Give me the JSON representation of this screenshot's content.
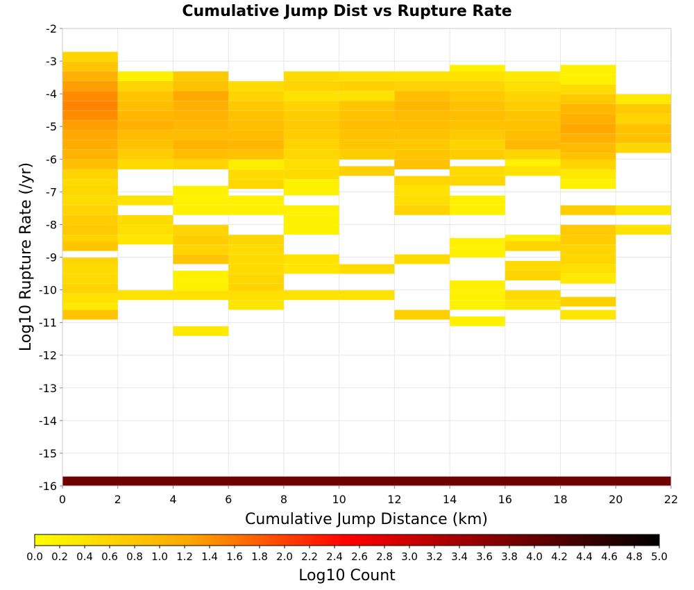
{
  "chart_data": {
    "type": "heatmap",
    "title": "Cumulative Jump Dist vs Rupture Rate",
    "xlabel": "Cumulative Jump Distance (km)",
    "ylabel": "Log10 Rupture Rate (/yr)",
    "xlim": [
      0,
      22
    ],
    "ylim": [
      -16,
      -2
    ],
    "x_ticks": [
      "0",
      "2",
      "4",
      "6",
      "8",
      "10",
      "12",
      "14",
      "16",
      "18",
      "20",
      "22"
    ],
    "y_ticks": [
      "-2",
      "-3",
      "-4",
      "-5",
      "-6",
      "-7",
      "-8",
      "-9",
      "-10",
      "-11",
      "-12",
      "-13",
      "-14",
      "-15",
      "-16"
    ],
    "grid": true,
    "cell_height": 0.286,
    "colorbar": {
      "label": "Log10 Count",
      "range": [
        0,
        5
      ],
      "ticks": [
        "0.0",
        "0.2",
        "0.4",
        "0.6",
        "0.8",
        "1.0",
        "1.2",
        "1.4",
        "1.6",
        "1.8",
        "2.0",
        "2.2",
        "2.4",
        "2.6",
        "2.8",
        "3.0",
        "3.2",
        "3.4",
        "3.6",
        "3.8",
        "4.0",
        "4.2",
        "4.4",
        "4.6",
        "4.8",
        "5.0"
      ],
      "colors": [
        "#ffff00",
        "#ffa500",
        "#ff0000",
        "#800000",
        "#000000"
      ]
    },
    "columns": [
      {
        "x": [
          0,
          2
        ],
        "cells": [
          [
            -3.0,
            0.6
          ],
          [
            -3.3,
            0.8
          ],
          [
            -3.6,
            1.1
          ],
          [
            -3.9,
            1.3
          ],
          [
            -4.2,
            1.45
          ],
          [
            -4.5,
            1.5
          ],
          [
            -4.8,
            1.45
          ],
          [
            -5.1,
            1.3
          ],
          [
            -5.4,
            1.2
          ],
          [
            -5.7,
            1.15
          ],
          [
            -6.0,
            1.05
          ],
          [
            -6.3,
            0.9
          ],
          [
            -6.6,
            0.6
          ],
          [
            -6.9,
            0.5
          ],
          [
            -7.1,
            0.55
          ],
          [
            -7.4,
            0.5
          ],
          [
            -7.7,
            0.6
          ],
          [
            -8.0,
            0.7
          ],
          [
            -8.3,
            0.75
          ],
          [
            -8.6,
            0.6
          ],
          [
            -8.8,
            0.8
          ],
          [
            -9.3,
            0.6
          ],
          [
            -9.5,
            0.5
          ],
          [
            -9.8,
            0.5
          ],
          [
            -10.1,
            0.6
          ],
          [
            -10.4,
            0.4
          ],
          [
            -10.7,
            0.3
          ],
          [
            -10.9,
            0.8
          ]
        ]
      },
      {
        "x": [
          2,
          4
        ],
        "cells": [
          [
            -3.6,
            0.2
          ],
          [
            -3.9,
            0.6
          ],
          [
            -4.2,
            0.8
          ],
          [
            -4.5,
            0.9
          ],
          [
            -4.8,
            1.0
          ],
          [
            -5.1,
            1.1
          ],
          [
            -5.4,
            0.95
          ],
          [
            -5.7,
            0.85
          ],
          [
            -6.0,
            0.7
          ],
          [
            -6.3,
            0.5
          ],
          [
            -7.4,
            0.4
          ],
          [
            -8.0,
            0.5
          ],
          [
            -8.3,
            0.45
          ],
          [
            -8.6,
            0.35
          ],
          [
            -10.3,
            0.4
          ]
        ]
      },
      {
        "x": [
          4,
          6
        ],
        "cells": [
          [
            -3.6,
            0.75
          ],
          [
            -3.9,
            0.85
          ],
          [
            -4.2,
            1.2
          ],
          [
            -4.5,
            1.1
          ],
          [
            -4.8,
            1.05
          ],
          [
            -5.1,
            1.0
          ],
          [
            -5.4,
            0.95
          ],
          [
            -5.7,
            1.05
          ],
          [
            -6.0,
            0.9
          ],
          [
            -6.3,
            0.6
          ],
          [
            -7.1,
            0.2
          ],
          [
            -7.4,
            0.2
          ],
          [
            -7.7,
            0.2
          ],
          [
            -8.3,
            0.6
          ],
          [
            -8.6,
            0.7
          ],
          [
            -8.9,
            0.6
          ],
          [
            -9.2,
            0.8
          ],
          [
            -9.7,
            0.2
          ],
          [
            -10.0,
            0.2
          ],
          [
            -10.3,
            0.4
          ],
          [
            -11.4,
            0.3
          ]
        ]
      },
      {
        "x": [
          6,
          8
        ],
        "cells": [
          [
            -3.9,
            0.5
          ],
          [
            -4.2,
            0.6
          ],
          [
            -4.5,
            0.75
          ],
          [
            -4.8,
            0.85
          ],
          [
            -5.1,
            0.9
          ],
          [
            -5.4,
            0.95
          ],
          [
            -5.7,
            1.0
          ],
          [
            -6.0,
            0.85
          ],
          [
            -6.3,
            0.25
          ],
          [
            -6.6,
            0.5
          ],
          [
            -6.9,
            0.55
          ],
          [
            -7.4,
            0.2
          ],
          [
            -7.7,
            0.2
          ],
          [
            -8.6,
            0.55
          ],
          [
            -8.9,
            0.5
          ],
          [
            -9.2,
            0.5
          ],
          [
            -9.5,
            0.5
          ],
          [
            -9.8,
            0.55
          ],
          [
            -10.1,
            0.6
          ],
          [
            -10.3,
            0.45
          ],
          [
            -10.6,
            0.35
          ]
        ]
      },
      {
        "x": [
          8,
          10
        ],
        "cells": [
          [
            -3.6,
            0.5
          ],
          [
            -3.9,
            0.6
          ],
          [
            -4.2,
            0.4
          ],
          [
            -4.5,
            0.6
          ],
          [
            -4.8,
            0.7
          ],
          [
            -5.1,
            0.75
          ],
          [
            -5.4,
            0.7
          ],
          [
            -5.7,
            0.6
          ],
          [
            -6.0,
            0.55
          ],
          [
            -6.3,
            0.45
          ],
          [
            -6.6,
            0.5
          ],
          [
            -6.9,
            0.2
          ],
          [
            -7.1,
            0.2
          ],
          [
            -7.7,
            0.2
          ],
          [
            -8.0,
            0.2
          ],
          [
            -8.3,
            0.2
          ],
          [
            -9.2,
            0.4
          ],
          [
            -9.5,
            0.35
          ],
          [
            -10.3,
            0.4
          ]
        ]
      },
      {
        "x": [
          10,
          12
        ],
        "cells": [
          [
            -3.6,
            0.45
          ],
          [
            -3.9,
            0.65
          ],
          [
            -4.2,
            0.4
          ],
          [
            -4.5,
            0.8
          ],
          [
            -4.8,
            0.85
          ],
          [
            -5.1,
            0.9
          ],
          [
            -5.4,
            0.85
          ],
          [
            -5.7,
            0.8
          ],
          [
            -6.0,
            0.7
          ],
          [
            -6.5,
            0.65
          ],
          [
            -9.5,
            0.5
          ],
          [
            -10.3,
            0.4
          ]
        ]
      },
      {
        "x": [
          12,
          14
        ],
        "cells": [
          [
            -3.6,
            0.4
          ],
          [
            -3.9,
            0.6
          ],
          [
            -4.2,
            0.9
          ],
          [
            -4.5,
            1.0
          ],
          [
            -4.8,
            0.95
          ],
          [
            -5.1,
            0.9
          ],
          [
            -5.4,
            0.85
          ],
          [
            -5.7,
            0.75
          ],
          [
            -6.0,
            0.8
          ],
          [
            -6.3,
            0.85
          ],
          [
            -6.8,
            0.55
          ],
          [
            -7.1,
            0.4
          ],
          [
            -7.4,
            0.45
          ],
          [
            -7.7,
            0.6
          ],
          [
            -9.2,
            0.5
          ],
          [
            -10.9,
            0.65
          ]
        ]
      },
      {
        "x": [
          14,
          16
        ],
        "cells": [
          [
            -3.4,
            0.2
          ],
          [
            -3.6,
            0.4
          ],
          [
            -3.9,
            0.6
          ],
          [
            -4.2,
            0.75
          ],
          [
            -4.5,
            0.85
          ],
          [
            -4.8,
            0.9
          ],
          [
            -5.1,
            0.85
          ],
          [
            -5.4,
            0.75
          ],
          [
            -5.7,
            0.6
          ],
          [
            -6.0,
            0.7
          ],
          [
            -6.5,
            0.5
          ],
          [
            -6.8,
            0.55
          ],
          [
            -7.4,
            0.2
          ],
          [
            -7.7,
            0.2
          ],
          [
            -8.7,
            0.2
          ],
          [
            -9.0,
            0.2
          ],
          [
            -10.0,
            0.2
          ],
          [
            -10.3,
            0.2
          ],
          [
            -10.6,
            0.2
          ],
          [
            -11.1,
            0.2
          ]
        ]
      },
      {
        "x": [
          16,
          18
        ],
        "cells": [
          [
            -3.6,
            0.3
          ],
          [
            -3.9,
            0.45
          ],
          [
            -4.2,
            0.6
          ],
          [
            -4.5,
            0.7
          ],
          [
            -4.8,
            0.8
          ],
          [
            -5.1,
            0.85
          ],
          [
            -5.4,
            0.9
          ],
          [
            -5.7,
            1.0
          ],
          [
            -6.0,
            0.55
          ],
          [
            -6.3,
            0.2
          ],
          [
            -6.5,
            0.4
          ],
          [
            -8.6,
            0.25
          ],
          [
            -8.8,
            0.6
          ],
          [
            -9.4,
            0.5
          ],
          [
            -9.7,
            0.6
          ],
          [
            -10.3,
            0.5
          ],
          [
            -10.6,
            0.35
          ]
        ]
      },
      {
        "x": [
          18,
          20
        ],
        "cells": [
          [
            -3.4,
            0.2
          ],
          [
            -3.7,
            0.2
          ],
          [
            -4.0,
            0.5
          ],
          [
            -4.3,
            0.75
          ],
          [
            -4.6,
            1.0
          ],
          [
            -4.9,
            1.1
          ],
          [
            -5.2,
            1.2
          ],
          [
            -5.5,
            1.1
          ],
          [
            -5.8,
            0.95
          ],
          [
            -6.1,
            0.85
          ],
          [
            -6.3,
            0.6
          ],
          [
            -6.6,
            0.3
          ],
          [
            -6.9,
            0.2
          ],
          [
            -7.7,
            0.7
          ],
          [
            -8.3,
            0.75
          ],
          [
            -8.6,
            0.7
          ],
          [
            -8.9,
            0.6
          ],
          [
            -9.2,
            0.55
          ],
          [
            -9.5,
            0.45
          ],
          [
            -9.8,
            0.3
          ],
          [
            -10.5,
            0.65
          ],
          [
            -10.9,
            0.35
          ]
        ]
      },
      {
        "x": [
          20,
          22
        ],
        "cells": [
          [
            -4.3,
            0.3
          ],
          [
            -4.6,
            0.75
          ],
          [
            -4.9,
            0.6
          ],
          [
            -5.2,
            0.85
          ],
          [
            -5.5,
            0.85
          ],
          [
            -5.8,
            0.55
          ],
          [
            -7.7,
            0.35
          ],
          [
            -8.3,
            0.4
          ]
        ]
      },
      {
        "x": [
          0,
          22
        ],
        "cells": [
          [
            -16.0,
            3.9
          ]
        ]
      }
    ]
  }
}
